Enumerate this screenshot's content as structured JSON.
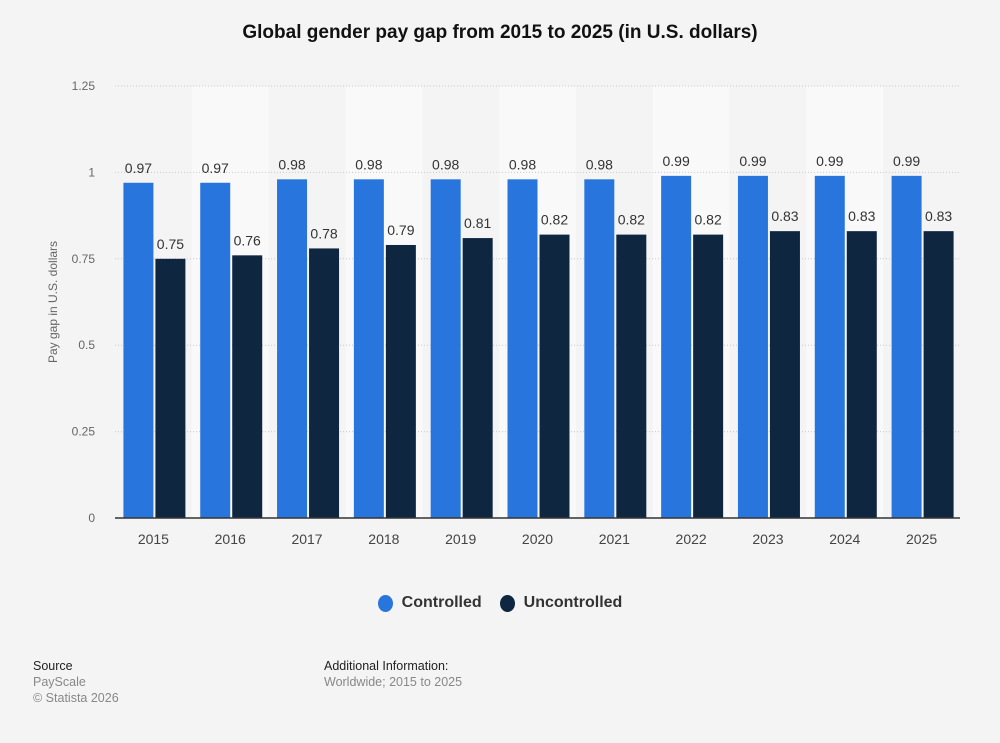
{
  "chart_data": {
    "type": "bar",
    "title": "Global gender pay gap from 2015 to 2025 (in U.S. dollars)",
    "xlabel": "",
    "ylabel": "Pay gap in U.S. dollars",
    "ylim": [
      0,
      1.25
    ],
    "yticks": [
      "0",
      "0.25",
      "0.5",
      "0.75",
      "1",
      "1.25"
    ],
    "grid": true,
    "legend": "bottom",
    "categories": [
      "2015",
      "2016",
      "2017",
      "2018",
      "2019",
      "2020",
      "2021",
      "2022",
      "2023",
      "2024",
      "2025"
    ],
    "series": [
      {
        "name": "Controlled",
        "color": "#2876dd",
        "values": [
          0.97,
          0.97,
          0.98,
          0.98,
          0.98,
          0.98,
          0.98,
          0.99,
          0.99,
          0.99,
          0.99
        ]
      },
      {
        "name": "Uncontrolled",
        "color": "#0f2641",
        "values": [
          0.75,
          0.76,
          0.78,
          0.79,
          0.81,
          0.82,
          0.82,
          0.82,
          0.83,
          0.83,
          0.83
        ]
      }
    ]
  },
  "footer": {
    "source_label": "Source",
    "source": "PayScale",
    "copyright": "© Statista 2026",
    "info_label": "Additional Information:",
    "info": "Worldwide; 2015 to 2025"
  }
}
